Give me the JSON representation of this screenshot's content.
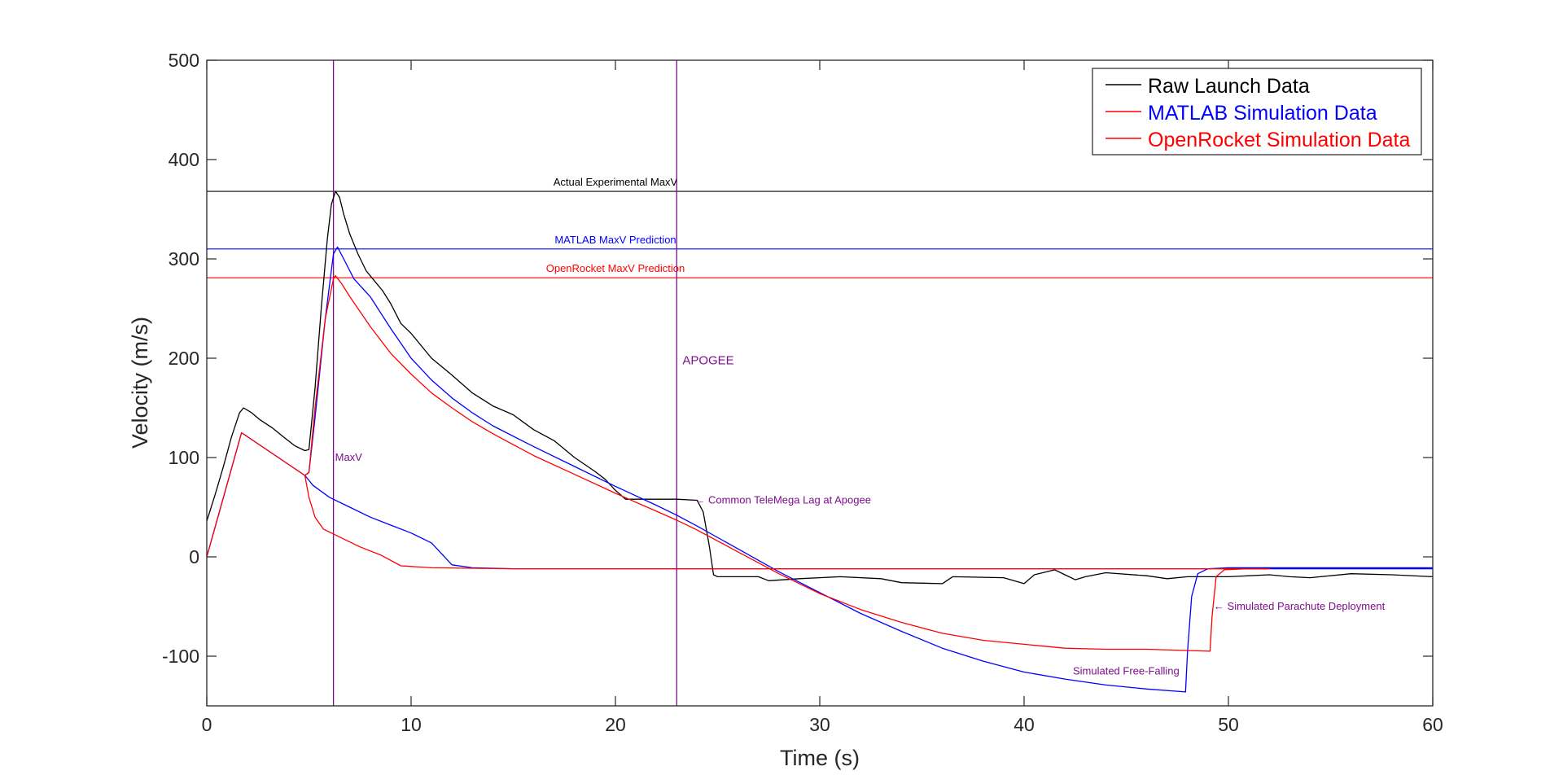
{
  "chart_data": {
    "type": "line",
    "xlabel": "Time (s)",
    "ylabel": "Velocity (m/s)",
    "xlim": [
      0,
      60
    ],
    "ylim": [
      -150,
      500
    ],
    "xticks": [
      0,
      10,
      20,
      30,
      40,
      50,
      60
    ],
    "yticks": [
      -100,
      0,
      100,
      200,
      300,
      400,
      500
    ],
    "grid": false,
    "legend_position": "top-right",
    "colors": {
      "raw": "#000000",
      "matlab": "#0000ff",
      "openrocket": "#ff0000",
      "annotation": "#7e0e8c",
      "axes": "#262626"
    },
    "legend": [
      {
        "label": "Raw Launch Data",
        "line_color": "#000000",
        "text_color": "#000000"
      },
      {
        "label": "MATLAB Simulation Data",
        "line_color": "#ff0000",
        "text_color": "#0000ff"
      },
      {
        "label": "OpenRocket Simulation Data",
        "line_color": "#ff0000",
        "text_color": "#ff0000"
      }
    ],
    "series": [
      {
        "key": "raw",
        "color": "#000000",
        "values": [
          [
            0,
            36
          ],
          [
            0.4,
            62
          ],
          [
            0.8,
            90
          ],
          [
            1.2,
            120
          ],
          [
            1.6,
            145
          ],
          [
            1.8,
            150
          ],
          [
            2.2,
            145
          ],
          [
            2.6,
            138
          ],
          [
            3.2,
            130
          ],
          [
            3.8,
            120
          ],
          [
            4.3,
            112
          ],
          [
            4.8,
            107
          ],
          [
            5.0,
            108
          ],
          [
            5.3,
            170
          ],
          [
            5.6,
            250
          ],
          [
            5.9,
            320
          ],
          [
            6.1,
            355
          ],
          [
            6.3,
            368
          ],
          [
            6.5,
            362
          ],
          [
            6.7,
            345
          ],
          [
            7.0,
            325
          ],
          [
            7.4,
            305
          ],
          [
            7.8,
            288
          ],
          [
            8.2,
            278
          ],
          [
            8.6,
            268
          ],
          [
            9.0,
            255
          ],
          [
            9.5,
            235
          ],
          [
            10.0,
            225
          ],
          [
            11,
            200
          ],
          [
            12,
            183
          ],
          [
            13,
            165
          ],
          [
            14,
            152
          ],
          [
            15,
            143
          ],
          [
            16,
            128
          ],
          [
            17,
            117
          ],
          [
            18,
            100
          ],
          [
            19,
            86
          ],
          [
            19.5,
            78
          ],
          [
            20,
            67
          ],
          [
            20.5,
            58
          ],
          [
            21,
            58
          ],
          [
            22,
            58
          ],
          [
            23,
            58
          ],
          [
            24,
            57
          ],
          [
            24.3,
            45
          ],
          [
            24.6,
            10
          ],
          [
            24.8,
            -18
          ],
          [
            25,
            -20
          ],
          [
            27,
            -20
          ],
          [
            27.5,
            -24
          ],
          [
            29,
            -22
          ],
          [
            31,
            -20
          ],
          [
            33,
            -22
          ],
          [
            34,
            -26
          ],
          [
            36,
            -27
          ],
          [
            36.5,
            -20
          ],
          [
            39,
            -21
          ],
          [
            40,
            -27
          ],
          [
            40.5,
            -18
          ],
          [
            41.5,
            -13
          ],
          [
            42,
            -18
          ],
          [
            42.5,
            -23
          ],
          [
            43,
            -20
          ],
          [
            44,
            -16
          ],
          [
            46,
            -19
          ],
          [
            47,
            -22
          ],
          [
            48,
            -20
          ],
          [
            50,
            -20
          ],
          [
            52,
            -18
          ],
          [
            53,
            -20
          ],
          [
            54,
            -21
          ],
          [
            56,
            -17
          ],
          [
            58,
            -18
          ],
          [
            60,
            -20
          ]
        ]
      },
      {
        "key": "matlab",
        "color": "#0000ff",
        "values": [
          [
            0,
            0
          ],
          [
            1.7,
            125
          ],
          [
            4.8,
            82
          ],
          [
            5.0,
            85
          ],
          [
            5.3,
            140
          ],
          [
            5.8,
            240
          ],
          [
            6.2,
            305
          ],
          [
            6.4,
            312
          ],
          [
            6.7,
            300
          ],
          [
            7.2,
            280
          ],
          [
            8,
            262
          ],
          [
            9,
            230
          ],
          [
            10,
            200
          ],
          [
            11,
            178
          ],
          [
            12,
            160
          ],
          [
            13,
            145
          ],
          [
            14,
            132
          ],
          [
            16,
            111
          ],
          [
            18,
            91
          ],
          [
            20,
            71
          ],
          [
            22,
            52
          ],
          [
            23,
            42
          ],
          [
            24,
            31
          ],
          [
            26,
            8
          ],
          [
            28,
            -15
          ],
          [
            30,
            -36
          ],
          [
            32,
            -57
          ],
          [
            34,
            -75
          ],
          [
            36,
            -92
          ],
          [
            38,
            -105
          ],
          [
            40,
            -116
          ],
          [
            42,
            -123
          ],
          [
            44,
            -129
          ],
          [
            46,
            -133
          ],
          [
            47.9,
            -136
          ],
          [
            48.0,
            -95
          ],
          [
            48.2,
            -40
          ],
          [
            48.5,
            -17
          ],
          [
            49,
            -12
          ],
          [
            50,
            -11
          ],
          [
            55,
            -11
          ],
          [
            60,
            -11
          ]
        ]
      },
      {
        "key": "matlab_descent",
        "color": "#0000ff",
        "values": [
          [
            4.8,
            82
          ],
          [
            5.2,
            72
          ],
          [
            6,
            60
          ],
          [
            7,
            50
          ],
          [
            8,
            40
          ],
          [
            9,
            32
          ],
          [
            10,
            24
          ],
          [
            11,
            14
          ],
          [
            12,
            -8
          ],
          [
            13,
            -11
          ],
          [
            15,
            -12
          ],
          [
            20,
            -12
          ],
          [
            25,
            -12
          ],
          [
            30,
            -12
          ],
          [
            40,
            -12
          ],
          [
            50,
            -12
          ],
          [
            60,
            -12
          ]
        ]
      },
      {
        "key": "openrocket",
        "color": "#ff0000",
        "values": [
          [
            0,
            0
          ],
          [
            1.7,
            125
          ],
          [
            4.8,
            82
          ],
          [
            5.0,
            85
          ],
          [
            5.3,
            150
          ],
          [
            5.8,
            240
          ],
          [
            6.2,
            280
          ],
          [
            6.3,
            283
          ],
          [
            6.6,
            275
          ],
          [
            7,
            262
          ],
          [
            8,
            232
          ],
          [
            9,
            205
          ],
          [
            10,
            184
          ],
          [
            11,
            165
          ],
          [
            12,
            150
          ],
          [
            13,
            136
          ],
          [
            14,
            124
          ],
          [
            16,
            102
          ],
          [
            18,
            83
          ],
          [
            20,
            64
          ],
          [
            22,
            46
          ],
          [
            23,
            37
          ],
          [
            24,
            27
          ],
          [
            26,
            5
          ],
          [
            28,
            -17
          ],
          [
            30,
            -37
          ],
          [
            32,
            -53
          ],
          [
            34,
            -66
          ],
          [
            36,
            -77
          ],
          [
            38,
            -84
          ],
          [
            40,
            -88
          ],
          [
            42,
            -92
          ],
          [
            44,
            -93
          ],
          [
            46,
            -93
          ],
          [
            49.1,
            -95
          ],
          [
            49.2,
            -60
          ],
          [
            49.4,
            -20
          ],
          [
            49.8,
            -13
          ],
          [
            51,
            -12
          ],
          [
            52,
            -12
          ]
        ]
      },
      {
        "key": "openrocket_descent",
        "color": "#ff0000",
        "values": [
          [
            4.8,
            82
          ],
          [
            5.0,
            60
          ],
          [
            5.3,
            40
          ],
          [
            5.7,
            28
          ],
          [
            6.5,
            20
          ],
          [
            7.5,
            10
          ],
          [
            8.5,
            2
          ],
          [
            9.5,
            -9
          ],
          [
            11,
            -11
          ],
          [
            15,
            -12
          ],
          [
            20,
            -12
          ],
          [
            25,
            -12
          ],
          [
            30,
            -12
          ],
          [
            40,
            -12
          ],
          [
            50,
            -12
          ],
          [
            52,
            -12
          ]
        ]
      }
    ],
    "hlines": [
      {
        "y": 368,
        "color": "#000000",
        "label": "Actual Experimental MaxV"
      },
      {
        "y": 310,
        "color": "#0000ff",
        "label": "MATLAB MaxV Prediction"
      },
      {
        "y": 281,
        "color": "#ff0000",
        "label": "OpenRocket MaxV Prediction"
      }
    ],
    "vlines": [
      {
        "x": 6.2,
        "label": "MaxV"
      },
      {
        "x": 23,
        "label": "APOGEE"
      }
    ],
    "annotations": [
      {
        "text": "MaxV",
        "x": 6.2,
        "y": 100
      },
      {
        "text": "APOGEE",
        "x": 23.2,
        "y": 197
      },
      {
        "text": "← Common TeleMega Lag at Apogee",
        "x": 23.8,
        "y": 57
      },
      {
        "text": "← Simulated Parachute Deployment",
        "x": 49.2,
        "y": -50
      },
      {
        "text": "Simulated Free-Falling",
        "x": 47.6,
        "y": -115
      }
    ]
  }
}
